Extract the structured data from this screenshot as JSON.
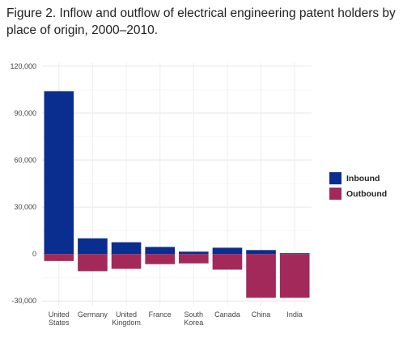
{
  "page": {
    "title": "Figure 2. Inflow and outflow of electrical engineering patent holders by place of origin, 2000–2010."
  },
  "chart_data": {
    "type": "bar",
    "stacked": "diverging",
    "title": "Figure 2. Inflow and outflow of electrical engineering patent holders by place of origin, 2000–2010.",
    "xlabel": "",
    "ylabel": "",
    "categories": [
      [
        "United",
        "States"
      ],
      [
        "Germany"
      ],
      [
        "United",
        "Kingdom"
      ],
      [
        "France"
      ],
      [
        "South",
        "Korea"
      ],
      [
        "Canada"
      ],
      [
        "China"
      ],
      [
        "India"
      ]
    ],
    "series": [
      {
        "name": "Inbound",
        "color": "#0a2e8f",
        "values": [
          104000,
          10000,
          7500,
          4500,
          1500,
          4000,
          2500,
          500
        ]
      },
      {
        "name": "Outbound",
        "color": "#a3295a",
        "values": [
          -4500,
          -11000,
          -9500,
          -6500,
          -6000,
          -10000,
          -28000,
          -28000
        ]
      }
    ],
    "ylim": [
      -33000,
      122000
    ],
    "yticks": [
      -30000,
      0,
      30000,
      60000,
      90000,
      120000
    ],
    "ytick_labels": [
      "-30,000",
      "0",
      "30,000",
      "60,000",
      "90,000",
      "120,000"
    ],
    "grid": true,
    "legend": "right"
  }
}
